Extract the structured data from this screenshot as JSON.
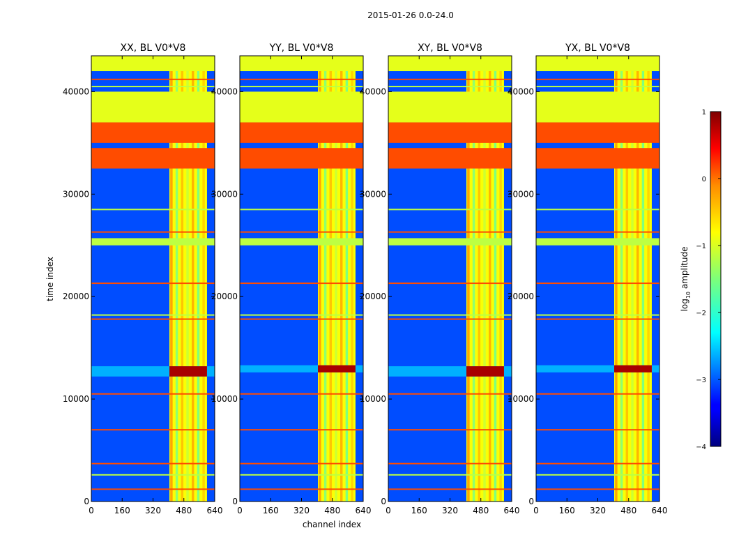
{
  "chart_data": {
    "type": "heatmap",
    "suptitle": "2015-01-26 0.0-24.0",
    "xlabel": "channel index",
    "ylabel": "time index",
    "xlim": [
      0,
      640
    ],
    "ylim": [
      0,
      43500
    ],
    "xticks": [
      0,
      160,
      320,
      480,
      640
    ],
    "yticks": [
      0,
      10000,
      20000,
      30000,
      40000
    ],
    "colorbar": {
      "label": "log",
      "label_sub": "10",
      "label_rest": " amplitude",
      "range": [
        -4,
        1
      ],
      "ticks": [
        1,
        0,
        -1,
        -2,
        -3,
        -4
      ],
      "tick_labels": [
        "1",
        "0",
        "−1",
        "−2",
        "−3",
        "−4"
      ],
      "colormap": "jet"
    },
    "panels": [
      {
        "title": "XX, BL V0*V8",
        "rfi_start": 405,
        "rfi_end": 600,
        "burst": [
          12200,
          13200
        ]
      },
      {
        "title": "YY, BL V0*V8",
        "rfi_start": 405,
        "rfi_end": 600,
        "burst": [
          12600,
          13300
        ]
      },
      {
        "title": "XY, BL V0*V8",
        "rfi_start": 405,
        "rfi_end": 600,
        "burst": [
          12200,
          13200
        ]
      },
      {
        "title": "YX, BL V0*V8",
        "rfi_start": 405,
        "rfi_end": 600,
        "burst": [
          12600,
          13300
        ]
      }
    ],
    "bands": [
      {
        "y0": 42000,
        "y1": 43500,
        "level": -1.0
      },
      {
        "y0": 37000,
        "y1": 40000,
        "level": -1.0
      },
      {
        "y0": 35000,
        "y1": 37000,
        "level": 0.0
      },
      {
        "y0": 32500,
        "y1": 34500,
        "level": 0.0
      },
      {
        "y0": 25000,
        "y1": 25700,
        "level": -1.2
      }
    ],
    "lines": [
      {
        "y": 1200,
        "level": 0.0
      },
      {
        "y": 2600,
        "level": -1.2
      },
      {
        "y": 3700,
        "level": 0.0
      },
      {
        "y": 7000,
        "level": 0.0
      },
      {
        "y": 10500,
        "level": 0.0
      },
      {
        "y": 17800,
        "level": 0.0
      },
      {
        "y": 18200,
        "level": -1.2
      },
      {
        "y": 21300,
        "level": 0.0
      },
      {
        "y": 26300,
        "level": 0.0
      },
      {
        "y": 28500,
        "level": -1.2
      },
      {
        "y": 40500,
        "level": -1.2
      },
      {
        "y": 41200,
        "level": 0.0
      }
    ]
  }
}
